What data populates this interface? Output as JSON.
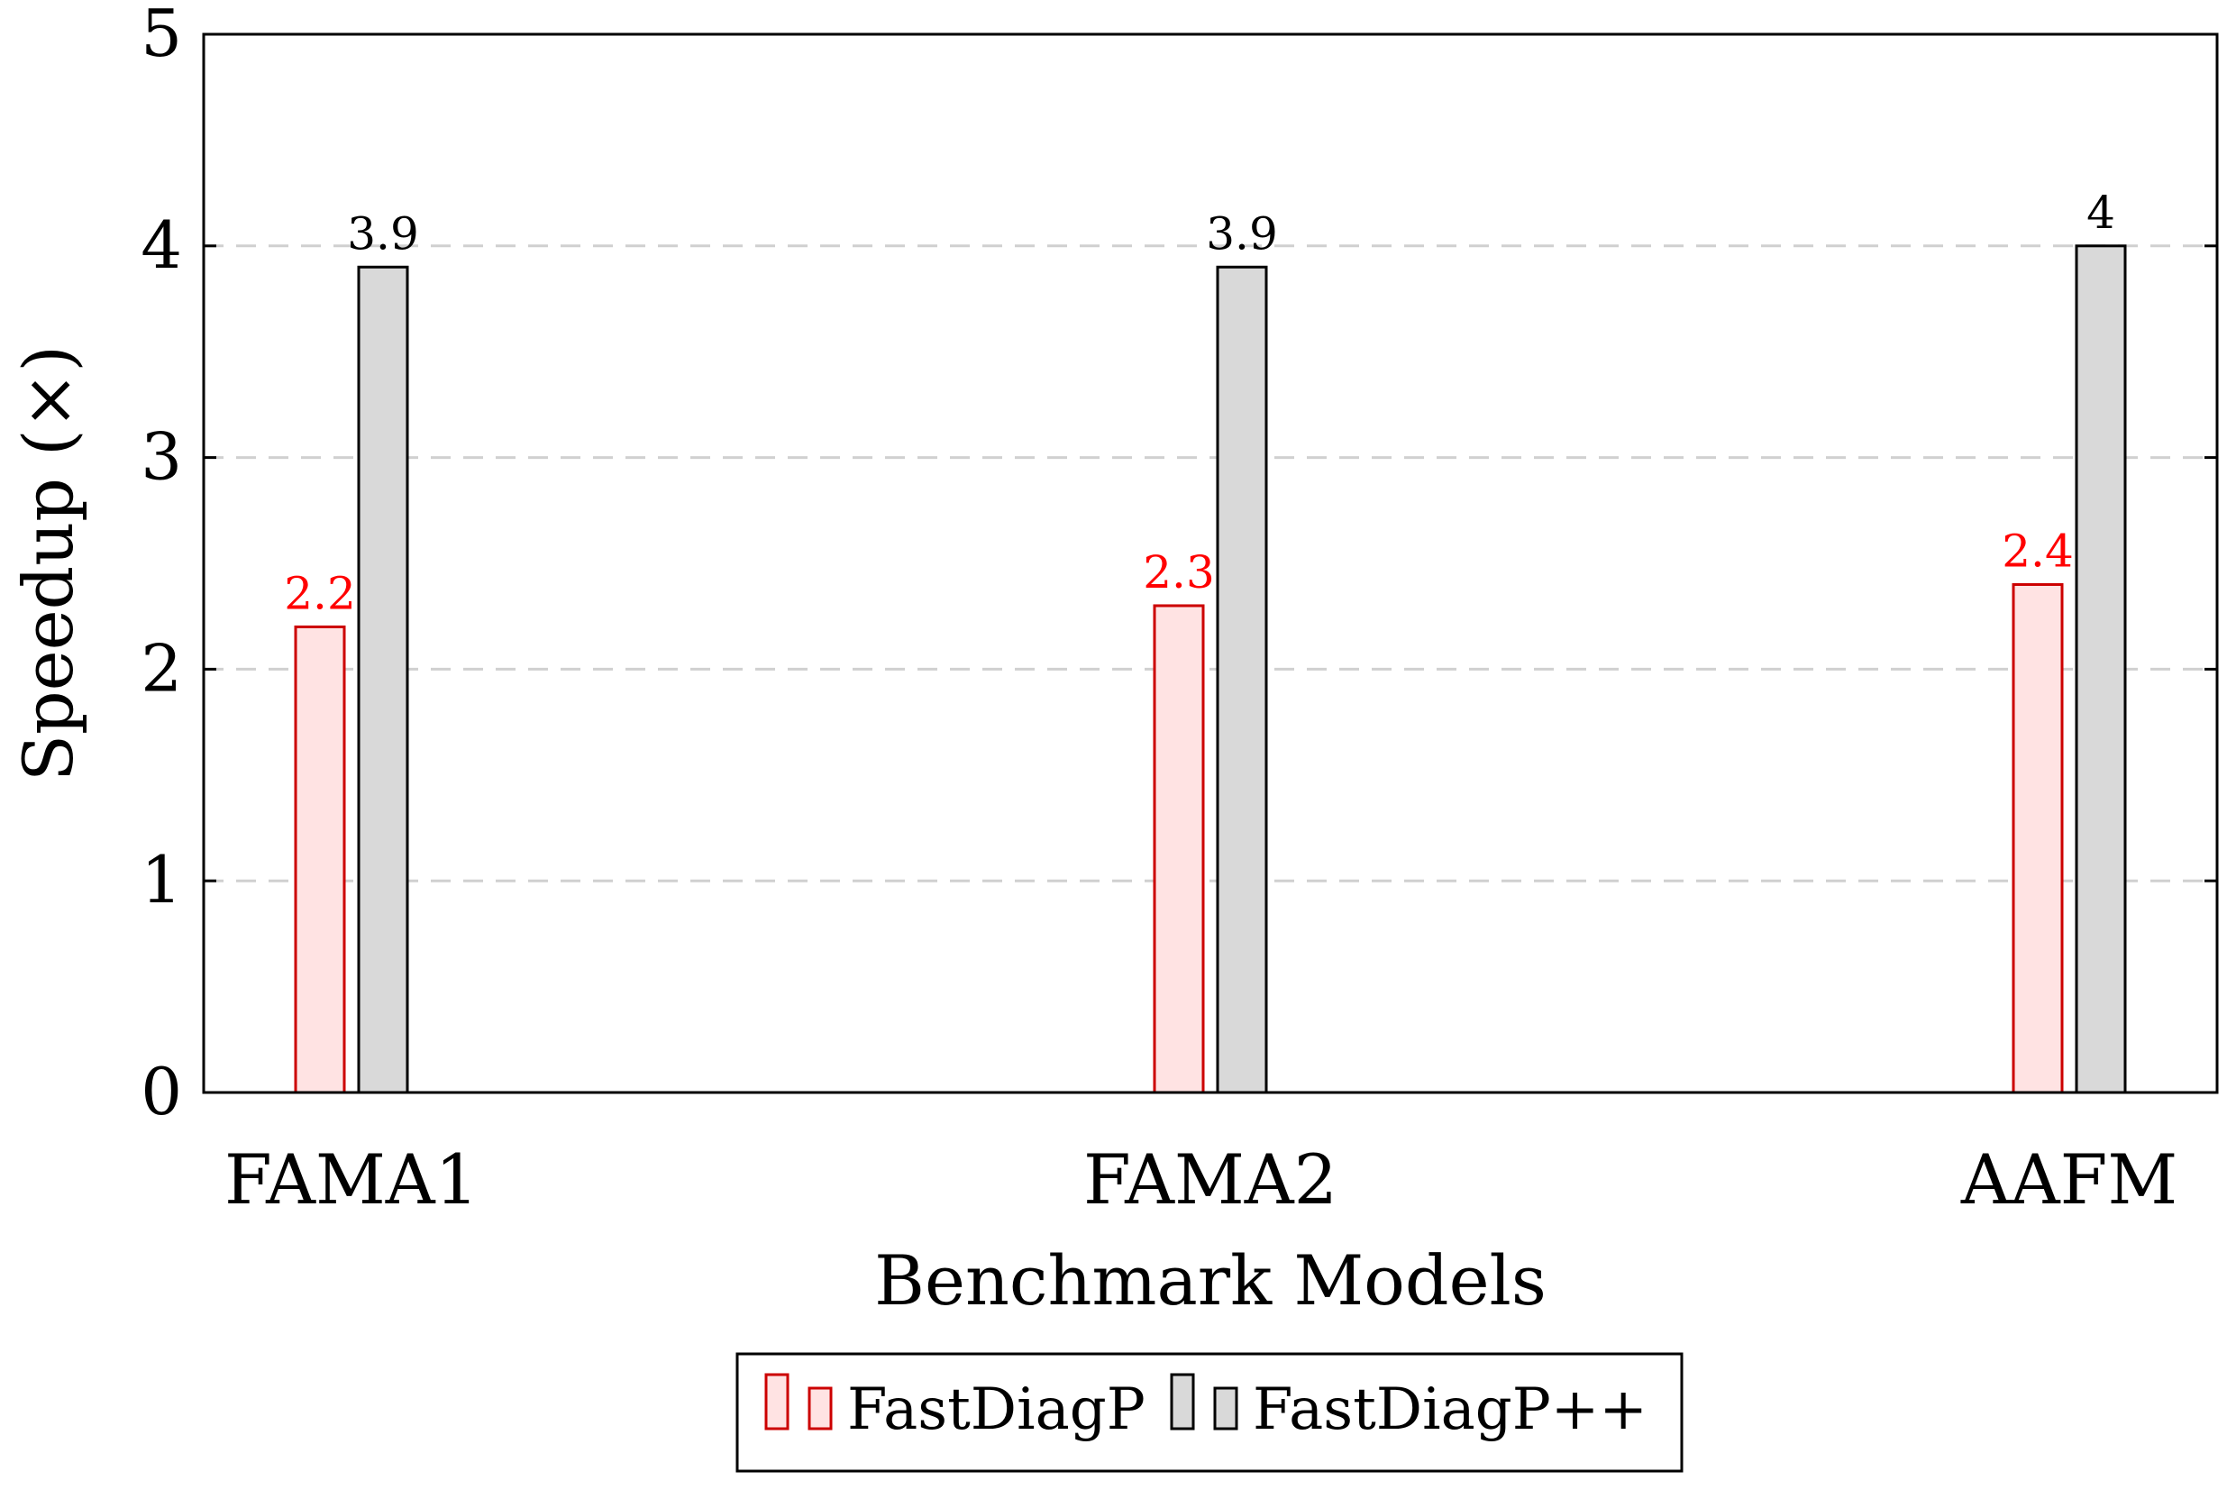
{
  "chart_data": {
    "type": "bar",
    "title": "",
    "xlabel": "Benchmark Models",
    "ylabel": "Speedup (×)",
    "categories": [
      "FAMA1",
      "FAMA2",
      "AAFM"
    ],
    "ylim": [
      0,
      5
    ],
    "yticks": [
      0,
      1,
      2,
      3,
      4,
      5
    ],
    "grid": "horizontal dashed",
    "legend_position": "bottom-center",
    "series": [
      {
        "name": "FastDiagP",
        "values": [
          2.2,
          2.3,
          2.4
        ],
        "labels": [
          "2.2",
          "2.3",
          "2.4"
        ],
        "fill": "#ffe3e3",
        "stroke": "#cc0000",
        "label_color": "#ff0000"
      },
      {
        "name": "FastDiagP++",
        "values": [
          3.9,
          3.9,
          4
        ],
        "labels": [
          "3.9",
          "3.9",
          "4"
        ],
        "fill": "#d9d9d9",
        "stroke": "#000000",
        "label_color": "#000000"
      }
    ]
  }
}
